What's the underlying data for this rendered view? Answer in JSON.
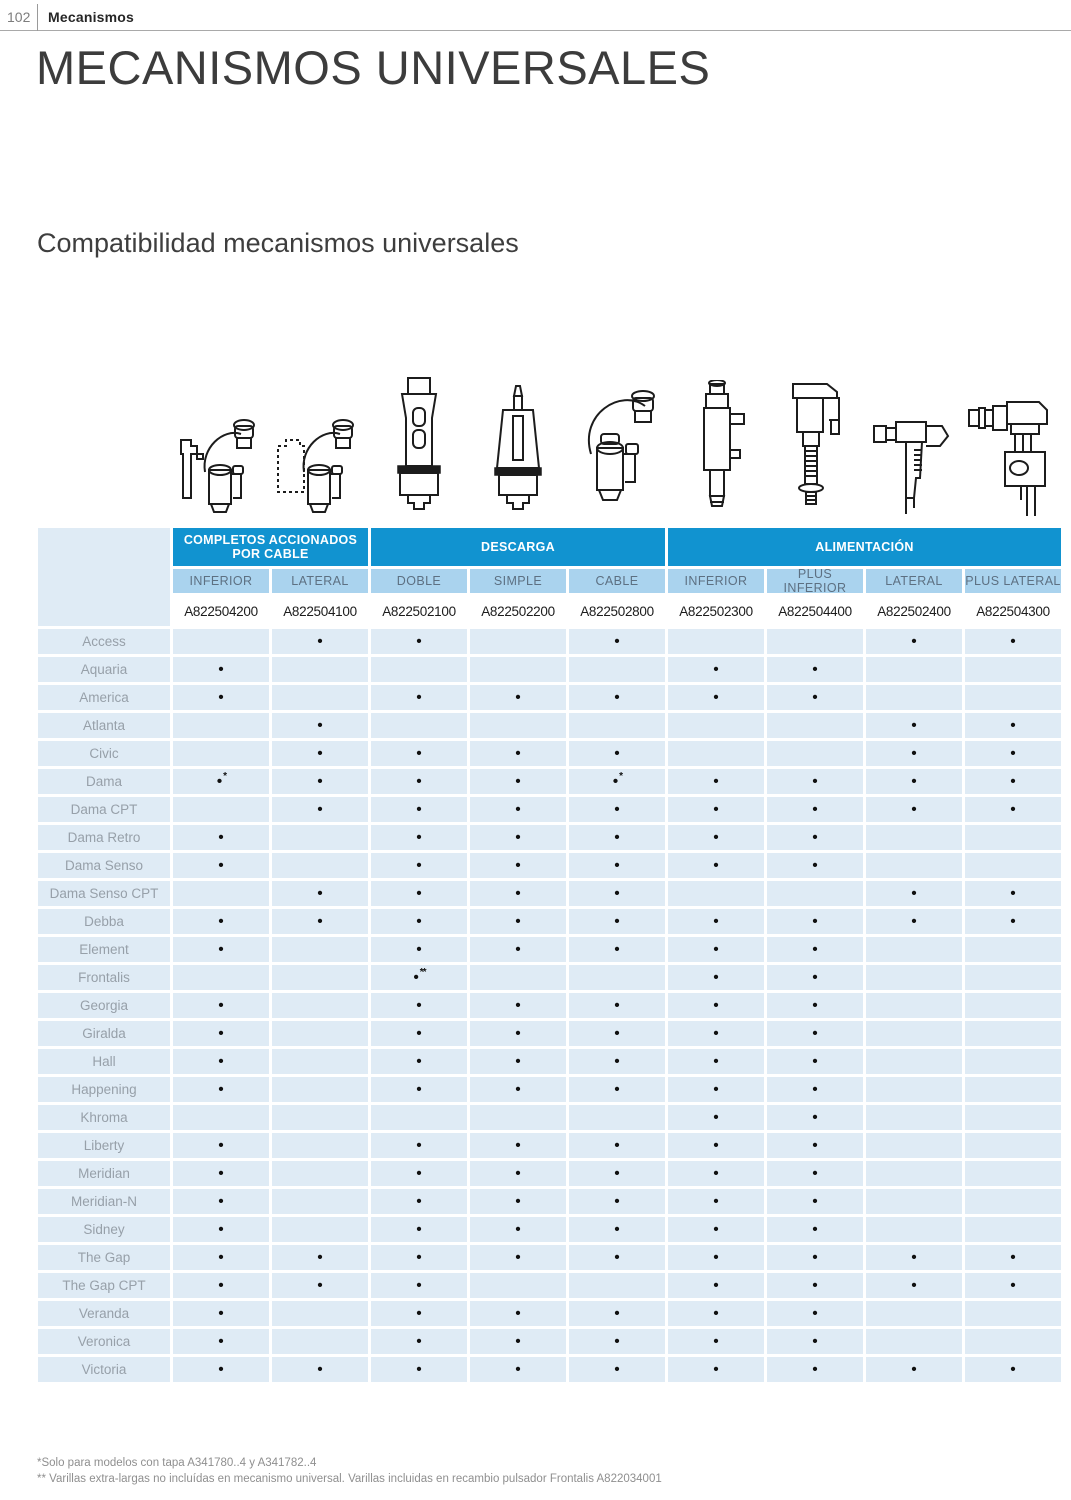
{
  "page": {
    "number": "102",
    "section": "Mecanismos",
    "title": "MECANISMOS UNIVERSALES",
    "subtitle": "Compatibilidad mecanismos universales"
  },
  "colors": {
    "group_header_blue": "#1193d0",
    "subheader_blue": "#aad3ee",
    "cell_blue": "#dfebf5",
    "row_label_gray": "#97a0a9"
  },
  "illustrations": [
    {
      "name": "mechanism-completo-cable-inferior"
    },
    {
      "name": "mechanism-completo-cable-lateral"
    },
    {
      "name": "mechanism-descarga-doble"
    },
    {
      "name": "mechanism-descarga-simple"
    },
    {
      "name": "mechanism-descarga-cable"
    },
    {
      "name": "mechanism-alimentacion-inferior"
    },
    {
      "name": "mechanism-alimentacion-plus-inferior"
    },
    {
      "name": "mechanism-alimentacion-lateral"
    },
    {
      "name": "mechanism-alimentacion-plus-lateral"
    }
  ],
  "table": {
    "groups": [
      {
        "label": "COMPLETOS ACCIONADOS POR CABLE"
      },
      {
        "label": "DESCARGA"
      },
      {
        "label": "ALIMENTACIÓN"
      }
    ],
    "columns": [
      {
        "type": "INFERIOR",
        "code": "A822504200"
      },
      {
        "type": "LATERAL",
        "code": "A822504100"
      },
      {
        "type": "DOBLE",
        "code": "A822502100"
      },
      {
        "type": "SIMPLE",
        "code": "A822502200"
      },
      {
        "type": "CABLE",
        "code": "A822502800"
      },
      {
        "type": "INFERIOR",
        "code": "A822502300"
      },
      {
        "type": "PLUS INFERIOR",
        "code": "A822504400"
      },
      {
        "type": "LATERAL",
        "code": "A822502400"
      },
      {
        "type": "PLUS LATERAL",
        "code": "A822504300"
      }
    ],
    "rows": [
      {
        "model": "Access",
        "cells": [
          "",
          "•",
          "•",
          "",
          "•",
          "",
          "",
          "•",
          "•"
        ]
      },
      {
        "model": "Aquaria",
        "cells": [
          "•",
          "",
          "",
          "",
          "",
          "•",
          "•",
          "",
          ""
        ]
      },
      {
        "model": "America",
        "cells": [
          "•",
          "",
          "•",
          "•",
          "•",
          "•",
          "•",
          "",
          ""
        ]
      },
      {
        "model": "Atlanta",
        "cells": [
          "",
          "•",
          "",
          "",
          "",
          "",
          "",
          "•",
          "•"
        ]
      },
      {
        "model": "Civic",
        "cells": [
          "",
          "•",
          "•",
          "•",
          "•",
          "",
          "",
          "•",
          "•"
        ]
      },
      {
        "model": "Dama",
        "cells": [
          "•*",
          "•",
          "•",
          "•",
          "•*",
          "•",
          "•",
          "•",
          "•"
        ]
      },
      {
        "model": "Dama CPT",
        "cells": [
          "",
          "•",
          "•",
          "•",
          "•",
          "•",
          "•",
          "•",
          "•"
        ]
      },
      {
        "model": "Dama Retro",
        "cells": [
          "•",
          "",
          "•",
          "•",
          "•",
          "•",
          "•",
          "",
          ""
        ]
      },
      {
        "model": "Dama Senso",
        "cells": [
          "•",
          "",
          "•",
          "•",
          "•",
          "•",
          "•",
          "",
          ""
        ]
      },
      {
        "model": "Dama Senso CPT",
        "cells": [
          "",
          "•",
          "•",
          "•",
          "•",
          "",
          "",
          "•",
          "•"
        ]
      },
      {
        "model": "Debba",
        "cells": [
          "•",
          "•",
          "•",
          "•",
          "•",
          "•",
          "•",
          "•",
          "•"
        ]
      },
      {
        "model": "Element",
        "cells": [
          "•",
          "",
          "•",
          "•",
          "•",
          "•",
          "•",
          "",
          ""
        ]
      },
      {
        "model": "Frontalis",
        "cells": [
          "",
          "",
          "•**",
          "",
          "",
          "•",
          "•",
          "",
          ""
        ]
      },
      {
        "model": "Georgia",
        "cells": [
          "•",
          "",
          "•",
          "•",
          "•",
          "•",
          "•",
          "",
          ""
        ]
      },
      {
        "model": "Giralda",
        "cells": [
          "•",
          "",
          "•",
          "•",
          "•",
          "•",
          "•",
          "",
          ""
        ]
      },
      {
        "model": "Hall",
        "cells": [
          "•",
          "",
          "•",
          "•",
          "•",
          "•",
          "•",
          "",
          ""
        ]
      },
      {
        "model": "Happening",
        "cells": [
          "•",
          "",
          "•",
          "•",
          "•",
          "•",
          "•",
          "",
          ""
        ]
      },
      {
        "model": "Khroma",
        "cells": [
          "",
          "",
          "",
          "",
          "",
          "•",
          "•",
          "",
          ""
        ]
      },
      {
        "model": "Liberty",
        "cells": [
          "•",
          "",
          "•",
          "•",
          "•",
          "•",
          "•",
          "",
          ""
        ]
      },
      {
        "model": "Meridian",
        "cells": [
          "•",
          "",
          "•",
          "•",
          "•",
          "•",
          "•",
          "",
          ""
        ]
      },
      {
        "model": "Meridian-N",
        "cells": [
          "•",
          "",
          "•",
          "•",
          "•",
          "•",
          "•",
          "",
          ""
        ]
      },
      {
        "model": "Sidney",
        "cells": [
          "•",
          "",
          "•",
          "•",
          "•",
          "•",
          "•",
          "",
          ""
        ]
      },
      {
        "model": "The Gap",
        "cells": [
          "•",
          "•",
          "•",
          "•",
          "•",
          "•",
          "•",
          "•",
          "•"
        ]
      },
      {
        "model": "The Gap CPT",
        "cells": [
          "•",
          "•",
          "•",
          "",
          "",
          "•",
          "•",
          "•",
          "•"
        ]
      },
      {
        "model": "Veranda",
        "cells": [
          "•",
          "",
          "•",
          "•",
          "•",
          "•",
          "•",
          "",
          ""
        ]
      },
      {
        "model": "Veronica",
        "cells": [
          "•",
          "",
          "•",
          "•",
          "•",
          "•",
          "•",
          "",
          ""
        ]
      },
      {
        "model": "Victoria",
        "cells": [
          "•",
          "•",
          "•",
          "•",
          "•",
          "•",
          "•",
          "•",
          "•"
        ]
      }
    ]
  },
  "footnotes": {
    "line1": "*Solo para modelos con tapa A341780..4 y A341782..4",
    "line2": "** Varillas extra-largas no incluídas en mecanismo universal. Varillas incluidas en recambio pulsador Frontalis A822034001"
  }
}
